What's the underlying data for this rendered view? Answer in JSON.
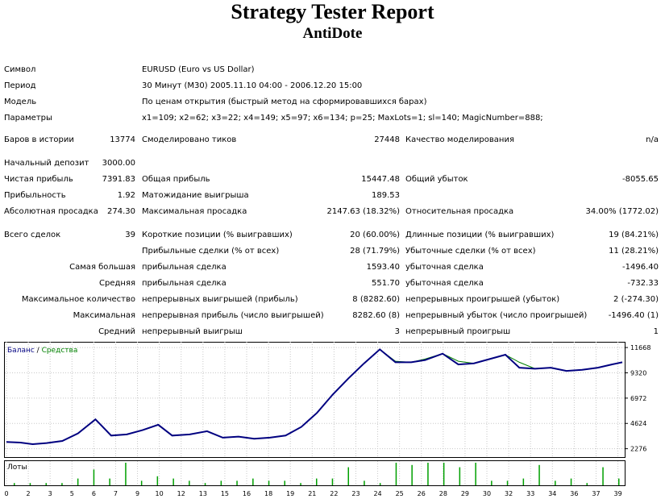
{
  "header": {
    "title": "Strategy Tester Report",
    "subtitle": "AntiDote"
  },
  "info": [
    {
      "label": "Символ",
      "value": "EURUSD (Euro vs US Dollar)"
    },
    {
      "label": "Период",
      "value": "30 Минут (M30) 2005.11.10 04:00 - 2006.12.20 15:00"
    },
    {
      "label": "Модель",
      "value": "По ценам открытия (быстрый метод на сформировавшихся барах)"
    },
    {
      "label": "Параметры",
      "value": "x1=109; x2=62; x3=22; x4=149; x5=97; x6=134; p=25; MaxLots=1; sl=140; MagicNumber=888;"
    }
  ],
  "stats": {
    "bars_label": "Баров в истории",
    "bars_value": "13774",
    "ticks_label": "Смоделировано тиков",
    "ticks_value": "27448",
    "quality_label": "Качество моделирования",
    "quality_value": "n/a",
    "deposit_label": "Начальный депозит",
    "deposit_value": "3000.00",
    "net_profit_label": "Чистая прибыль",
    "net_profit_value": "7391.83",
    "gross_profit_label": "Общая прибыль",
    "gross_profit_value": "15447.48",
    "gross_loss_label": "Общий убыток",
    "gross_loss_value": "-8055.65",
    "profit_factor_label": "Прибыльность",
    "profit_factor_value": "1.92",
    "expected_payoff_label": "Матожидание выигрыша",
    "expected_payoff_value": "189.53",
    "abs_dd_label": "Абсолютная просадка",
    "abs_dd_value": "274.30",
    "max_dd_label": "Максимальная просадка",
    "max_dd_value": "2147.63 (18.32%)",
    "rel_dd_label": "Относительная просадка",
    "rel_dd_value": "34.00% (1772.02)",
    "total_trades_label": "Всего сделок",
    "total_trades_value": "39",
    "short_label": "Короткие позиции (% выигравших)",
    "short_value": "20 (60.00%)",
    "long_label": "Длинные позиции (% выигравших)",
    "long_value": "19 (84.21%)",
    "profit_trades_label": "Прибыльные сделки (% от всех)",
    "profit_trades_value": "28 (71.79%)",
    "loss_trades_label": "Убыточные сделки (% от всех)",
    "loss_trades_value": "11 (28.21%)",
    "largest_label": "Самая большая",
    "largest_profit_label": "прибыльная сделка",
    "largest_profit_value": "1593.40",
    "largest_loss_label": "убыточная сделка",
    "largest_loss_value": "-1496.40",
    "average_label": "Средняя",
    "average_profit_label": "прибыльная сделка",
    "average_profit_value": "551.70",
    "average_loss_label": "убыточная сделка",
    "average_loss_value": "-732.33",
    "max_count_label": "Максимальное количество",
    "max_cons_wins_label": "непрерывных выигрышей (прибыль)",
    "max_cons_wins_value": "8 (8282.60)",
    "max_cons_losses_label": "непрерывных проигрышей (убыток)",
    "max_cons_losses_value": "2 (-274.30)",
    "maximal_label": "Максимальная",
    "max_cons_profit_label": "непрерывная прибыль (число выигрышей)",
    "max_cons_profit_value": "8282.60 (8)",
    "max_cons_loss_label": "непрерывный убыток (число проигрышей)",
    "max_cons_loss_value": "-1496.40 (1)",
    "avg_label": "Средний",
    "avg_cons_wins_label": "непрерывный выигрыш",
    "avg_cons_wins_value": "3",
    "avg_cons_losses_label": "непрерывный проигрыш",
    "avg_cons_losses_value": "1"
  },
  "chart_data": {
    "type": "line",
    "legend": {
      "balance": "Баланс",
      "separator": " / ",
      "equity": "Средства"
    },
    "lots_label": "Лоты",
    "colors": {
      "balance": "#000080",
      "equity": "#008000",
      "lots": "#00a000",
      "grid": "#c8c8c8"
    },
    "ylim": [
      1500,
      12200
    ],
    "y_ticks": [
      "11668",
      "9320",
      "6972",
      "4624",
      "2276"
    ],
    "x_ticks": [
      "0",
      "2",
      "3",
      "5",
      "6",
      "7",
      "9",
      "10",
      "12",
      "13",
      "15",
      "16",
      "18",
      "19",
      "21",
      "22",
      "23",
      "24",
      "25",
      "26",
      "28",
      "29",
      "30",
      "32",
      "33",
      "34",
      "36",
      "37",
      "39"
    ],
    "balance": [
      [
        0,
        2900
      ],
      [
        0.8,
        2850
      ],
      [
        1.5,
        2700
      ],
      [
        2.3,
        2800
      ],
      [
        3.2,
        3000
      ],
      [
        4.1,
        3700
      ],
      [
        5.1,
        5000
      ],
      [
        6,
        3500
      ],
      [
        6.9,
        3600
      ],
      [
        7.8,
        4000
      ],
      [
        8.7,
        4500
      ],
      [
        9.5,
        3500
      ],
      [
        10.5,
        3600
      ],
      [
        11.5,
        3900
      ],
      [
        12.4,
        3300
      ],
      [
        13.3,
        3400
      ],
      [
        14.2,
        3200
      ],
      [
        15.1,
        3300
      ],
      [
        16,
        3500
      ],
      [
        16.9,
        4300
      ],
      [
        17.8,
        5600
      ],
      [
        18.7,
        7300
      ],
      [
        19.6,
        8800
      ],
      [
        20.5,
        10200
      ],
      [
        21.4,
        11500
      ],
      [
        22.3,
        10300
      ],
      [
        23.2,
        10300
      ],
      [
        24,
        10500
      ],
      [
        25,
        11100
      ],
      [
        25.9,
        10100
      ],
      [
        26.8,
        10200
      ],
      [
        27.7,
        10600
      ],
      [
        28.6,
        11000
      ],
      [
        29.4,
        9800
      ],
      [
        30.3,
        9700
      ],
      [
        31.2,
        9800
      ],
      [
        32.1,
        9500
      ],
      [
        33,
        9600
      ],
      [
        33.9,
        9800
      ],
      [
        34.7,
        10100
      ],
      [
        35.3,
        10300
      ]
    ],
    "equity": [
      [
        0,
        2900
      ],
      [
        0.8,
        2850
      ],
      [
        1.5,
        2700
      ],
      [
        2.3,
        2800
      ],
      [
        3.2,
        3000
      ],
      [
        4.1,
        3700
      ],
      [
        5.1,
        5000
      ],
      [
        6,
        3500
      ],
      [
        6.9,
        3600
      ],
      [
        7.8,
        4000
      ],
      [
        8.7,
        4500
      ],
      [
        9.5,
        3500
      ],
      [
        10.5,
        3600
      ],
      [
        11.5,
        3900
      ],
      [
        12.4,
        3300
      ],
      [
        13.3,
        3400
      ],
      [
        14.2,
        3200
      ],
      [
        15.1,
        3300
      ],
      [
        16,
        3500
      ],
      [
        16.9,
        4300
      ],
      [
        17.8,
        5600
      ],
      [
        18.7,
        7300
      ],
      [
        19.6,
        8800
      ],
      [
        20.5,
        10200
      ],
      [
        21.4,
        11500
      ],
      [
        22.3,
        10400
      ],
      [
        23.2,
        10300
      ],
      [
        24,
        10600
      ],
      [
        25,
        11100
      ],
      [
        25.9,
        10400
      ],
      [
        26.8,
        10200
      ],
      [
        27.7,
        10600
      ],
      [
        28.6,
        11000
      ],
      [
        29.4,
        10300
      ],
      [
        30.3,
        9700
      ],
      [
        31.2,
        9800
      ],
      [
        32.1,
        9500
      ],
      [
        33,
        9600
      ],
      [
        33.9,
        9800
      ],
      [
        34.7,
        10100
      ],
      [
        35.3,
        10300
      ]
    ],
    "lots": [
      0.1,
      0.1,
      0.1,
      0.1,
      0.3,
      0.7,
      0.3,
      1,
      0.2,
      0.4,
      0.3,
      0.2,
      0.1,
      0.2,
      0.2,
      0.3,
      0.2,
      0.2,
      0.1,
      0.3,
      0.3,
      0.8,
      0.2,
      0.1,
      1,
      0.9,
      1,
      1,
      0.8,
      1,
      0.2,
      0.2,
      0.3,
      0.9,
      0.2,
      0.3,
      0.1,
      0.8,
      0.3
    ]
  }
}
